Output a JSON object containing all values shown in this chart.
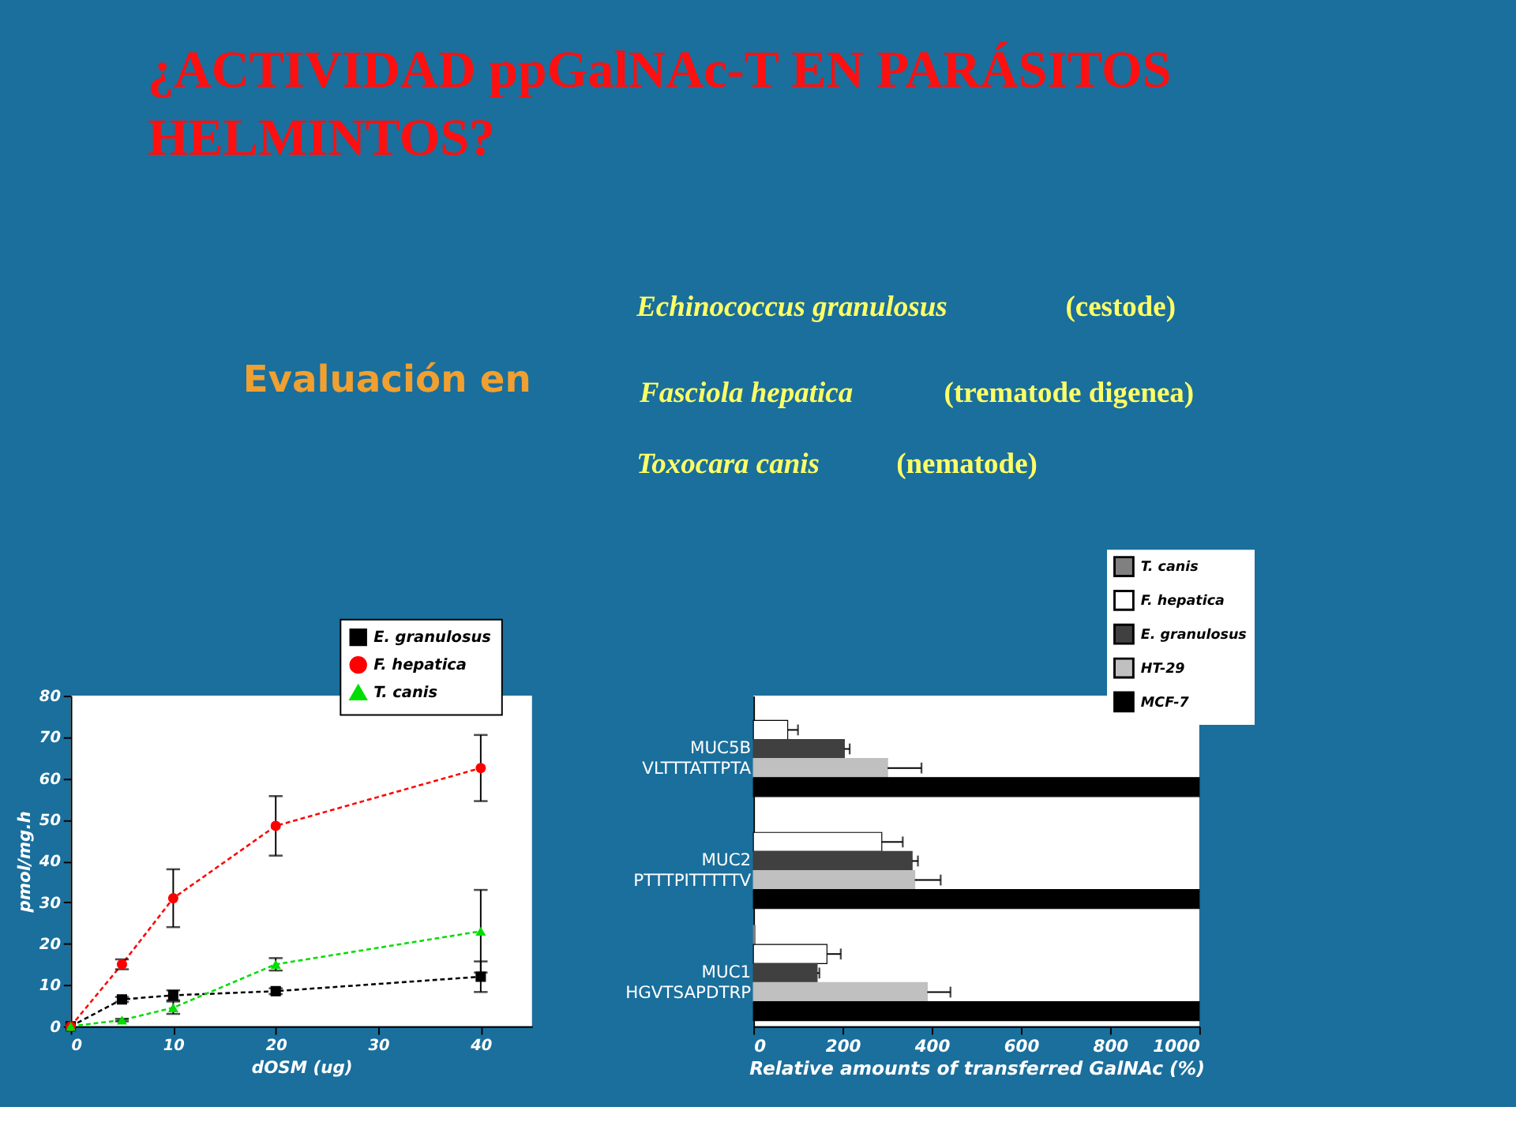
{
  "chart_data": [
    {
      "type": "other",
      "title": "¿ACTIVIDAD ppGalNAc-T EN PARÁSITOS HELMINTOS?",
      "annotations": [
        "Evaluación en",
        "Echinococcus granulosus",
        "(cestode)",
        "Fasciola  hepatica",
        "(trematode digenea)",
        "Toxocara canis",
        "(nematode)"
      ]
    },
    {
      "type": "line",
      "xlabel": "dOSM (ug)",
      "ylabel": "pmol/mg.h",
      "x": [
        0,
        5,
        10,
        20,
        40
      ],
      "xlim": [
        0,
        45
      ],
      "xticks": [
        0,
        10,
        20,
        30,
        40
      ],
      "ylim": [
        0,
        80
      ],
      "yticks": [
        0,
        10,
        20,
        30,
        40,
        50,
        60,
        70,
        80
      ],
      "grid": false,
      "legend": "top right",
      "line_style": "dashed",
      "series": [
        {
          "name": "E. granulosus",
          "color": "#000000",
          "marker": "square",
          "values": [
            0,
            6.5,
            7.5,
            8.5,
            12
          ],
          "errors": [
            null,
            0.6,
            1.2,
            0.7,
            3.7
          ]
        },
        {
          "name": "F. hepatica",
          "color": "#ff0000",
          "marker": "circle",
          "values": [
            0,
            15,
            31,
            48.5,
            62.5
          ],
          "errors": [
            null,
            1.2,
            7,
            7.2,
            8
          ]
        },
        {
          "name": "T. canis",
          "color": "#00dd00",
          "marker": "triangle",
          "values": [
            0,
            1.5,
            4.5,
            15,
            23
          ],
          "errors": [
            null,
            0.3,
            1.5,
            1.5,
            10
          ]
        }
      ]
    },
    {
      "type": "bar",
      "orientation": "horizontal",
      "xlabel": "Relative amounts of transferred GalNAc (%)",
      "categories": [
        "MUC5B\nVLTTTATTPTA",
        "MUC2\nPTTTPITTTTTV",
        "MUC1\nHGVTSAPDTRP"
      ],
      "xlim": [
        0,
        1000
      ],
      "xticks": [
        0,
        200,
        400,
        600,
        800,
        1000
      ],
      "grid": false,
      "legend": "top right",
      "series": [
        {
          "name": "T. canis",
          "color": "#808080",
          "values": [
            null,
            null,
            4
          ]
        },
        {
          "name": "F. hepatica",
          "color": "#ffffff",
          "values": [
            77,
            288,
            165
          ],
          "errors": [
            [
              77,
              100
            ],
            [
              288,
              335
            ],
            [
              165,
              196
            ]
          ]
        },
        {
          "name": "E. granulosus",
          "color": "#404040",
          "values": [
            204,
            356,
            143
          ],
          "errors": [
            [
              204,
              216
            ],
            [
              356,
              369
            ],
            [
              143,
              148
            ]
          ]
        },
        {
          "name": "HT-29",
          "color": "#c0c0c0",
          "values": [
            301,
            362,
            390
          ],
          "errors": [
            [
              301,
              377
            ],
            [
              362,
              420
            ],
            [
              390,
              442
            ]
          ]
        },
        {
          "name": "MCF-7",
          "color": "#000000",
          "values": [
            1000,
            1000,
            1000
          ]
        }
      ]
    }
  ]
}
